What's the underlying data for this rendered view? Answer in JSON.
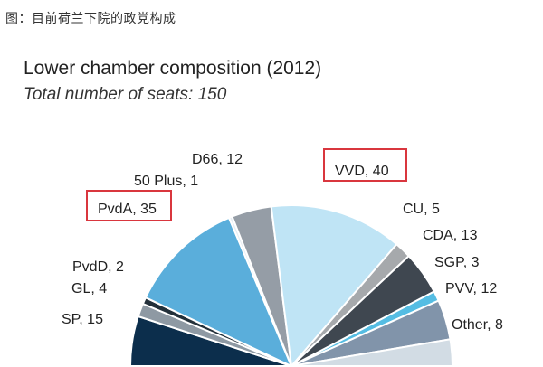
{
  "caption": "图：目前荷兰下院的政党构成",
  "chart_data": {
    "type": "pie",
    "title": "Lower chamber composition (2012)",
    "subtitle": "Total number of seats: 150",
    "total": 150,
    "slices": [
      {
        "name": "SP",
        "value": 15,
        "label": "SP, 15",
        "color": "#0c2e4c"
      },
      {
        "name": "GL",
        "value": 4,
        "label": "GL, 4",
        "color": "#8e99a3"
      },
      {
        "name": "PvdD",
        "value": 2,
        "label": "PvdD, 2",
        "color": "#23303a"
      },
      {
        "name": "PvdA",
        "value": 35,
        "label": "PvdA, 35",
        "color": "#5aaedb",
        "highlight": true
      },
      {
        "name": "50 Plus",
        "value": 1,
        "label": "50 Plus, 1",
        "color": "#e6eef4"
      },
      {
        "name": "D66",
        "value": 12,
        "label": "D66, 12",
        "color": "#959da6"
      },
      {
        "name": "VVD",
        "value": 40,
        "label": "VVD, 40",
        "color": "#bfe4f5",
        "highlight": true
      },
      {
        "name": "CU",
        "value": 5,
        "label": "CU, 5",
        "color": "#a6a9ac"
      },
      {
        "name": "CDA",
        "value": 13,
        "label": "CDA, 13",
        "color": "#3f4750"
      },
      {
        "name": "SGP",
        "value": 3,
        "label": "SGP, 3",
        "color": "#55bde3"
      },
      {
        "name": "PVV",
        "value": 12,
        "label": "PVV, 12",
        "color": "#8194aa"
      },
      {
        "name": "Other",
        "value": 8,
        "label": "Other, 8",
        "color": "#d2dce4"
      }
    ],
    "highlight_color": "#d9363e"
  }
}
